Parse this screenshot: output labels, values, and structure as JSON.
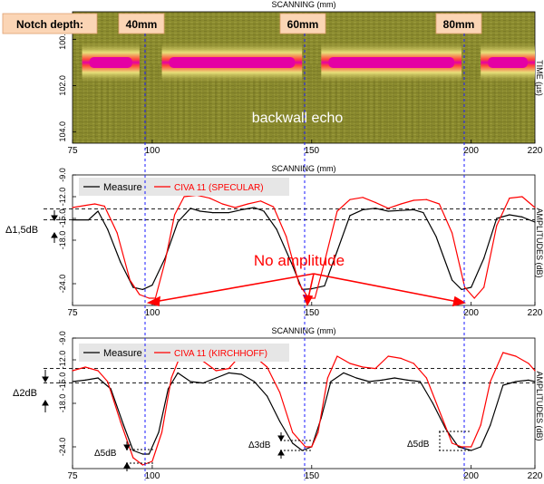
{
  "header": {
    "notch_label": "Notch depth:",
    "depths": [
      "40mm",
      "60mm",
      "80mm"
    ],
    "notch_positions": [
      100,
      150,
      200
    ]
  },
  "colors": {
    "notch_box": "#fbd5b5",
    "measure": "#000000",
    "civa": "#ff0000",
    "annotation_red": "#ff0000",
    "blue_dashed": "#1a1aff",
    "bscan_bg": "#8a8a2e",
    "bscan_peak": "#e400a4",
    "bscan_mid": "#ff4a3a",
    "bscan_band": "#e8e07a",
    "legend_bg": "#e6e6e6"
  },
  "bscan": {
    "x_label": "SCANNING (mm)",
    "y_label": "TIME (µs)",
    "x_ticks": [
      "75",
      "100",
      "150",
      "200",
      "220"
    ],
    "y_ticks": [
      "100.0",
      "102.0",
      "104.0"
    ],
    "xlim": [
      75,
      220
    ],
    "ylim": [
      104.5,
      98.8
    ],
    "backwall_label": "backwall echo",
    "backwall_time_us": 101.0,
    "signal_segments": [
      [
        78,
        96
      ],
      [
        103,
        147
      ],
      [
        153,
        197
      ],
      [
        203,
        220
      ]
    ]
  },
  "panel2": {
    "x_label": "SCANNING (mm)",
    "y_label": "AMPLITUDES (dB)",
    "x_ticks": [
      "75",
      "100",
      "150",
      "200",
      "220"
    ],
    "y_ticks": [
      "-9.0",
      "-12.0",
      "-15.0",
      "-18.0",
      "-24.0"
    ],
    "legend": [
      "Measure",
      "CIVA 11 (SPECULAR)"
    ],
    "delta_label": "Δ1,5dB",
    "no_amplitude_label": "No amplitude",
    "ref_lines_db": [
      -13.7,
      -15.2
    ]
  },
  "panel3": {
    "x_label": "SCANNING (mm)",
    "y_label": "AMPLITUDES (dB)",
    "x_ticks": [
      "75",
      "100",
      "150",
      "200",
      "220"
    ],
    "y_ticks": [
      "-9.0",
      "-12.0",
      "-15.0",
      "-18.0",
      "-24.0"
    ],
    "legend": [
      "Measure",
      "CIVA 11 (KIRCHHOFF)"
    ],
    "delta_left_label": "Δ2dB",
    "notch_deltas": [
      "Δ5dB",
      "Δ3dB",
      "Δ5dB"
    ],
    "ref_lines_db": [
      -13.2,
      -15.2
    ]
  },
  "chart_data": [
    {
      "type": "heatmap",
      "title": "",
      "xlabel": "SCANNING (mm)",
      "ylabel": "TIME (µs)",
      "xlim": [
        75,
        220
      ],
      "ylim": [
        104.5,
        98.8
      ],
      "annotation": "backwall echo"
    },
    {
      "type": "line",
      "xlabel": "SCANNING (mm)",
      "ylabel": "AMPLITUDES (dB)",
      "xlim": [
        75,
        220
      ],
      "ylim": [
        -27,
        -9
      ],
      "series": [
        {
          "name": "Measure",
          "x": [
            75,
            80,
            83,
            86,
            90,
            94,
            97,
            100,
            104,
            108,
            112,
            115,
            119,
            124,
            128,
            132,
            135,
            139,
            144,
            147,
            150,
            154,
            158,
            162,
            166,
            170,
            174,
            178,
            182,
            185,
            189,
            194,
            197,
            200,
            204,
            208,
            212,
            216,
            220
          ],
          "y": [
            -15.2,
            -15.2,
            -14.0,
            -16.5,
            -21.0,
            -24.5,
            -24.8,
            -24.2,
            -20.5,
            -15.5,
            -13.6,
            -14.0,
            -14.2,
            -14.2,
            -13.8,
            -13.5,
            -14.0,
            -16.5,
            -21.5,
            -24.8,
            -24.7,
            -24.3,
            -19.5,
            -14.6,
            -13.8,
            -13.6,
            -14.0,
            -13.9,
            -13.8,
            -14.2,
            -17.5,
            -23.5,
            -24.8,
            -24.5,
            -20.5,
            -15.0,
            -14.5,
            -14.8,
            -15.5
          ]
        },
        {
          "name": "CIVA 11 (SPECULAR)",
          "x": [
            75,
            79,
            82,
            85,
            89,
            93,
            96,
            99,
            101,
            104,
            107,
            110,
            114,
            118,
            122,
            126,
            130,
            134,
            138,
            142,
            146,
            149,
            151,
            154,
            158,
            162,
            166,
            170,
            174,
            178,
            182,
            186,
            190,
            194,
            198,
            201,
            204,
            208,
            212,
            216,
            220
          ],
          "y": [
            -13.5,
            -13.2,
            -13.0,
            -13.3,
            -17.0,
            -23.5,
            -25.5,
            -26.0,
            -26.0,
            -21.0,
            -14.5,
            -12.0,
            -11.8,
            -12.2,
            -13.0,
            -13.5,
            -13.0,
            -12.6,
            -13.4,
            -17.5,
            -24.0,
            -26.0,
            -26.0,
            -21.0,
            -14.0,
            -12.4,
            -12.1,
            -12.8,
            -13.6,
            -13.0,
            -12.5,
            -12.4,
            -13.0,
            -17.0,
            -24.5,
            -26.0,
            -24.5,
            -16.0,
            -12.2,
            -12.0,
            -13.5
          ]
        }
      ]
    },
    {
      "type": "line",
      "xlabel": "SCANNING (mm)",
      "ylabel": "AMPLITUDES (dB)",
      "xlim": [
        75,
        220
      ],
      "ylim": [
        -27,
        -9
      ],
      "series": [
        {
          "name": "Measure",
          "x": [
            75,
            79,
            83,
            87,
            91,
            94,
            97,
            99,
            102,
            105,
            108,
            112,
            116,
            120,
            124,
            128,
            132,
            136,
            140,
            144,
            147,
            150,
            153,
            156,
            160,
            164,
            168,
            172,
            176,
            180,
            184,
            188,
            192,
            196,
            200,
            203,
            206,
            210,
            214,
            218,
            220
          ],
          "y": [
            -15.0,
            -14.8,
            -14.5,
            -16.0,
            -21.0,
            -24.5,
            -25.0,
            -25.0,
            -22.0,
            -16.0,
            -13.8,
            -15.0,
            -15.2,
            -14.5,
            -13.8,
            -14.0,
            -15.0,
            -17.0,
            -20.5,
            -23.5,
            -24.5,
            -24.0,
            -20.0,
            -15.0,
            -13.8,
            -14.5,
            -15.0,
            -14.8,
            -14.5,
            -14.8,
            -15.0,
            -18.0,
            -21.5,
            -24.0,
            -24.5,
            -24.0,
            -21.0,
            -15.5,
            -15.0,
            -14.8,
            -15.0
          ]
        },
        {
          "name": "CIVA 11 (KIRCHHOFF)",
          "x": [
            75,
            79,
            83,
            86,
            90,
            94,
            97,
            100,
            103,
            106,
            109,
            112,
            116,
            120,
            124,
            128,
            132,
            136,
            140,
            144,
            148,
            150,
            152,
            155,
            158,
            162,
            166,
            170,
            174,
            178,
            182,
            186,
            190,
            194,
            197,
            200,
            203,
            206,
            210,
            214,
            218,
            220
          ],
          "y": [
            -13.5,
            -13.0,
            -13.5,
            -15.0,
            -20.5,
            -25.5,
            -26.5,
            -26.0,
            -22.0,
            -14.5,
            -11.2,
            -11.0,
            -12.2,
            -13.5,
            -13.2,
            -11.2,
            -11.5,
            -13.0,
            -16.5,
            -22.0,
            -24.0,
            -24.0,
            -22.0,
            -14.5,
            -11.5,
            -12.5,
            -13.0,
            -13.2,
            -11.5,
            -11.8,
            -12.5,
            -14.5,
            -19.0,
            -23.5,
            -24.0,
            -24.0,
            -21.0,
            -15.0,
            -11.0,
            -11.5,
            -12.5,
            -13.5
          ]
        }
      ]
    }
  ]
}
